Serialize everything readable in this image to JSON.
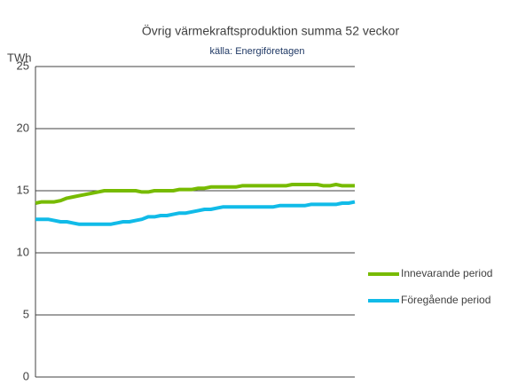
{
  "chart_data": {
    "type": "line",
    "title": "Övrig värmekraftsproduktion  summa 52 veckor",
    "subtitle": "källa: Energiföretagen",
    "y_label": "TWh",
    "categories": [
      null,
      null,
      null,
      null,
      null,
      null,
      null,
      null,
      null,
      null,
      null,
      null,
      null,
      null,
      null,
      null,
      null,
      null,
      null,
      null,
      null,
      null,
      null,
      null,
      null,
      null,
      null,
      null,
      null,
      null,
      null,
      null,
      null,
      null,
      null,
      null,
      null,
      null,
      null,
      null,
      null,
      null,
      null,
      null,
      null,
      null,
      null,
      null,
      null,
      null,
      null,
      null
    ],
    "series": [
      {
        "name": "Innevarande period",
        "color": "#77bb00",
        "values": [
          14.0,
          14.1,
          14.1,
          14.1,
          14.2,
          14.4,
          14.5,
          14.6,
          14.7,
          14.8,
          14.9,
          15.0,
          15.0,
          15.0,
          15.0,
          15.0,
          15.0,
          14.9,
          14.9,
          15.0,
          15.0,
          15.0,
          15.0,
          15.1,
          15.1,
          15.1,
          15.2,
          15.2,
          15.3,
          15.3,
          15.3,
          15.3,
          15.3,
          15.4,
          15.4,
          15.4,
          15.4,
          15.4,
          15.4,
          15.4,
          15.4,
          15.5,
          15.5,
          15.5,
          15.5,
          15.5,
          15.4,
          15.4,
          15.5,
          15.4,
          15.4,
          15.4
        ]
      },
      {
        "name": "Föregående period",
        "color": "#11bbe8",
        "values": [
          12.7,
          12.7,
          12.7,
          12.6,
          12.5,
          12.5,
          12.4,
          12.3,
          12.3,
          12.3,
          12.3,
          12.3,
          12.3,
          12.4,
          12.5,
          12.5,
          12.6,
          12.7,
          12.9,
          12.9,
          13.0,
          13.0,
          13.1,
          13.2,
          13.2,
          13.3,
          13.4,
          13.5,
          13.5,
          13.6,
          13.7,
          13.7,
          13.7,
          13.7,
          13.7,
          13.7,
          13.7,
          13.7,
          13.7,
          13.8,
          13.8,
          13.8,
          13.8,
          13.8,
          13.9,
          13.9,
          13.9,
          13.9,
          13.9,
          14.0,
          14.0,
          14.1
        ]
      }
    ],
    "ylim": [
      0,
      25
    ],
    "yticks": [
      0,
      5,
      10,
      15,
      20,
      25
    ],
    "grid": true,
    "legend": "right"
  }
}
